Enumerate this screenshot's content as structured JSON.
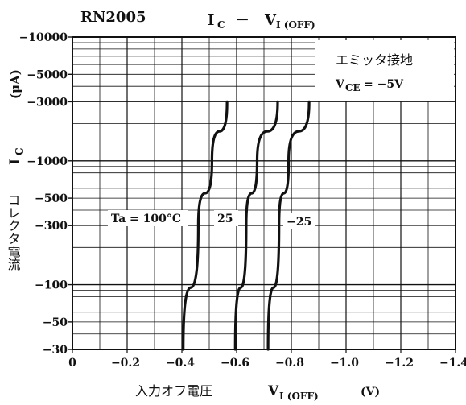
{
  "chart_data": {
    "type": "line",
    "part_number": "RN2005",
    "title_main": "IC － VI(OFF)",
    "title_parts": {
      "i": "I",
      "c": "C",
      "dash": "－",
      "v": "V",
      "sub": "I (OFF)"
    },
    "xlabel": {
      "jp": "入力オフ電圧",
      "sym": "V",
      "sub": "I (OFF)",
      "unit": "(V)"
    },
    "ylabel": {
      "jp": "コレクタ電流",
      "sym": "I",
      "sub": "C",
      "unit": "(μA)"
    },
    "x_ticks": [
      0,
      -0.2,
      -0.4,
      -0.6,
      -0.8,
      -1.0,
      -1.2,
      -1.4
    ],
    "x_tick_labels": [
      "0",
      "−0.2",
      "−0.4",
      "−0.6",
      "−0.8",
      "−1.0",
      "−1.2",
      "−1.4"
    ],
    "y_ticks": [
      -30,
      -50,
      -100,
      -300,
      -500,
      -1000,
      -3000,
      -5000,
      -10000
    ],
    "y_tick_labels": [
      "−30",
      "−50",
      "−100",
      "−300",
      "−500",
      "−1000",
      "−3000",
      "−5000",
      "−10000"
    ],
    "xlim": [
      0,
      -1.4
    ],
    "ylim": [
      -30,
      -10000
    ],
    "y_scale": "log",
    "grid": true,
    "legend_box": {
      "line1": "エミッタ接地",
      "line2_sym": "V",
      "line2_sub": "CE",
      "line2_val": "= −5V"
    },
    "series": [
      {
        "name": "Ta = 100°C",
        "x": [
          -0.405,
          -0.46,
          -0.51,
          -0.565
        ],
        "y": [
          -30,
          -300,
          -1000,
          -3000
        ]
      },
      {
        "name": "25",
        "x": [
          -0.595,
          -0.635,
          -0.675,
          -0.75
        ],
        "y": [
          -30,
          -300,
          -1000,
          -3000
        ]
      },
      {
        "name": "−25",
        "x": [
          -0.715,
          -0.755,
          -0.79,
          -0.865
        ],
        "y": [
          -30,
          -300,
          -1000,
          -3000
        ]
      }
    ]
  }
}
